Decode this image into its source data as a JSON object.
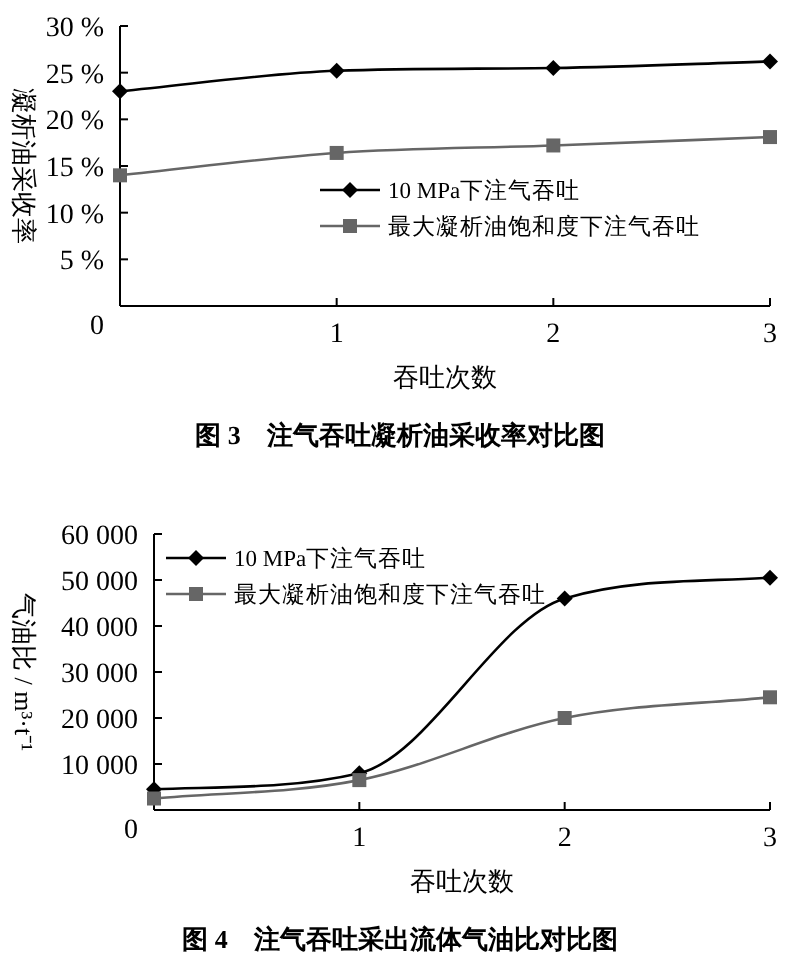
{
  "chart_data": [
    {
      "type": "line",
      "title": "图 3　注气吞吐凝析油采收率对比图",
      "xlabel": "吞吐次数",
      "ylabel": "凝析油采收率",
      "x": [
        0,
        1,
        2,
        3
      ],
      "xlim": [
        0,
        3
      ],
      "xticks": [
        1,
        2,
        3
      ],
      "ylim": [
        0,
        30
      ],
      "yticks": [
        0,
        {
          "value": 5,
          "label": "5 %"
        },
        {
          "value": 10,
          "label": "10 %"
        },
        {
          "value": 15,
          "label": "15 %"
        },
        {
          "value": 20,
          "label": "20 %"
        },
        {
          "value": 25,
          "label": "25 %"
        },
        {
          "value": 30,
          "label": "30 %"
        }
      ],
      "legend": "bottom right",
      "grid": false,
      "line_style": "solid",
      "series": [
        {
          "name": "10 MPa下注气吞吐",
          "color": "#000000",
          "marker": "diamond",
          "values": [
            23,
            25.2,
            25.5,
            26.2
          ]
        },
        {
          "name": "最大凝析油饱和度下注气吞吐",
          "color": "#666666",
          "marker": "square",
          "values": [
            14,
            16.4,
            17.2,
            18.1
          ]
        }
      ]
    },
    {
      "type": "line",
      "title": "图 4　注气吞吐采出流体气油比对比图",
      "xlabel": "吞吐次数",
      "ylabel": "气油比 / m³·t⁻¹",
      "x": [
        0,
        1,
        2,
        3
      ],
      "xlim": [
        0,
        3
      ],
      "xticks": [
        1,
        2,
        3
      ],
      "ylim": [
        0,
        60000
      ],
      "yticks": [
        0,
        {
          "value": 10000,
          "label": "10 000"
        },
        {
          "value": 20000,
          "label": "20 000"
        },
        {
          "value": 30000,
          "label": "30 000"
        },
        {
          "value": 40000,
          "label": "40 000"
        },
        {
          "value": 50000,
          "label": "50 000"
        },
        {
          "value": 60000,
          "label": "60 000"
        }
      ],
      "legend": "top left",
      "grid": false,
      "line_style": "solid",
      "series": [
        {
          "name": "10 MPa下注气吞吐",
          "color": "#000000",
          "marker": "diamond",
          "values": [
            4500,
            8000,
            46000,
            50500
          ]
        },
        {
          "name": "最大凝析油饱和度下注气吞吐",
          "color": "#666666",
          "marker": "square",
          "values": [
            2500,
            6500,
            20000,
            24500
          ]
        }
      ]
    }
  ]
}
